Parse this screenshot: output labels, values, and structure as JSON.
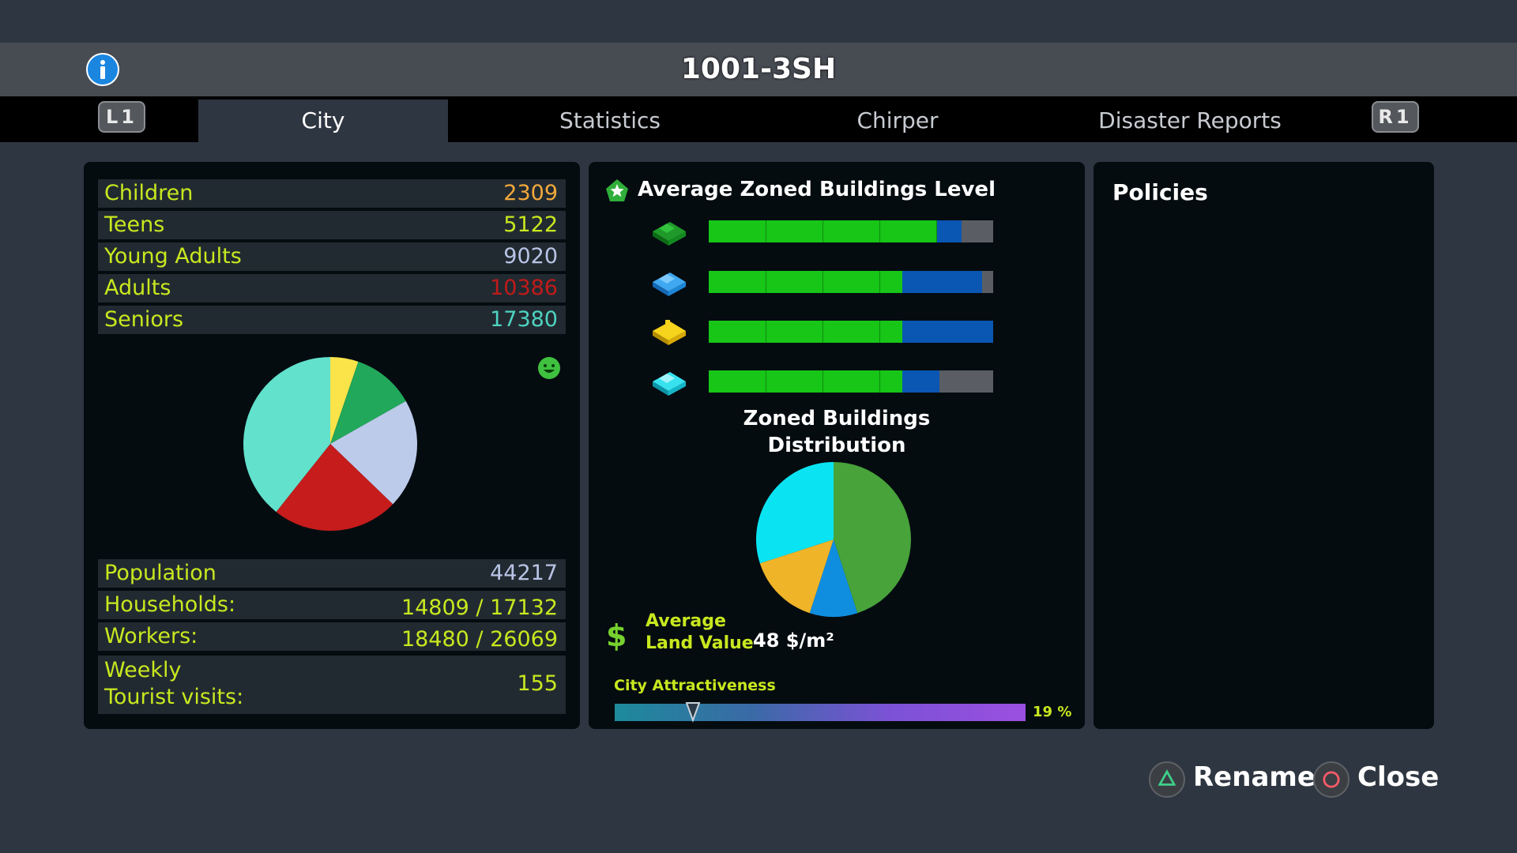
{
  "header": {
    "title": "1001-3SH",
    "info_icon": "info-icon"
  },
  "tabs": {
    "left_shoulder": "L1",
    "right_shoulder": "R1",
    "items": [
      {
        "label": "City",
        "active": true
      },
      {
        "label": "Statistics",
        "active": false
      },
      {
        "label": "Chirper",
        "active": false
      },
      {
        "label": "Disaster Reports",
        "active": false
      }
    ]
  },
  "population": {
    "age_groups": [
      {
        "label": "Children",
        "value": "2309",
        "color": "#f2a93b"
      },
      {
        "label": "Teens",
        "value": "5122",
        "color": "#c8e81f"
      },
      {
        "label": "Young Adults",
        "value": "9020",
        "color": "#b8c4e6"
      },
      {
        "label": "Adults",
        "value": "10386",
        "color": "#c01a1a"
      },
      {
        "label": "Seniors",
        "value": "17380",
        "color": "#4ed3c1"
      }
    ],
    "happiness_icon": "smiley-icon",
    "stats": [
      {
        "label": "Population",
        "value": "44217"
      },
      {
        "label": "Households:",
        "value": "14809 / 17132"
      },
      {
        "label": "Workers:",
        "value": "18480 / 26069"
      },
      {
        "label_line1": "Weekly",
        "label_line2": "Tourist visits:",
        "value": "155"
      }
    ]
  },
  "chart_data": [
    {
      "type": "pie",
      "categories": [
        "Children",
        "Teens",
        "Young Adults",
        "Adults",
        "Seniors"
      ],
      "values": [
        2309,
        5122,
        9020,
        10386,
        17380
      ],
      "colors": [
        "#fbe34a",
        "#21a85a",
        "#bccbea",
        "#c61c1c",
        "#62e1cc"
      ]
    },
    {
      "type": "bar",
      "title": "Average Zoned Buildings Level",
      "categories": [
        "residential",
        "commercial",
        "industrial",
        "office"
      ],
      "series": [
        {
          "values": [
            4,
            3.4,
            3.4,
            3.4
          ]
        },
        {
          "values": [
            0.45,
            1.4,
            1.65,
            0.65
          ]
        }
      ],
      "ylim": [
        0,
        5
      ],
      "icons": [
        "residential-zone-icon",
        "commercial-zone-icon",
        "industrial-zone-icon",
        "office-zone-icon"
      ]
    },
    {
      "type": "pie",
      "title": "Zoned Buildings Distribution",
      "categories": [
        "residential",
        "commercial",
        "industrial",
        "office"
      ],
      "values": [
        45,
        10,
        15,
        30
      ],
      "colors": [
        "#47a33a",
        "#0f8ee0",
        "#f0b428",
        "#0ae4f2"
      ]
    }
  ],
  "zoned": {
    "title": "Average Zoned Buildings Level",
    "distribution_title_line1": "Zoned Buildings",
    "distribution_title_line2": "Distribution"
  },
  "land_value": {
    "label_line1": "Average",
    "label_line2": "Land Value",
    "value": "48 $/m²",
    "icon": "dollar-icon"
  },
  "attractiveness": {
    "label": "City Attractiveness",
    "percent_text": "19 %",
    "value": 0.19
  },
  "policies": {
    "title": "Policies"
  },
  "footer": {
    "rename_label": "Rename",
    "close_label": "Close"
  }
}
